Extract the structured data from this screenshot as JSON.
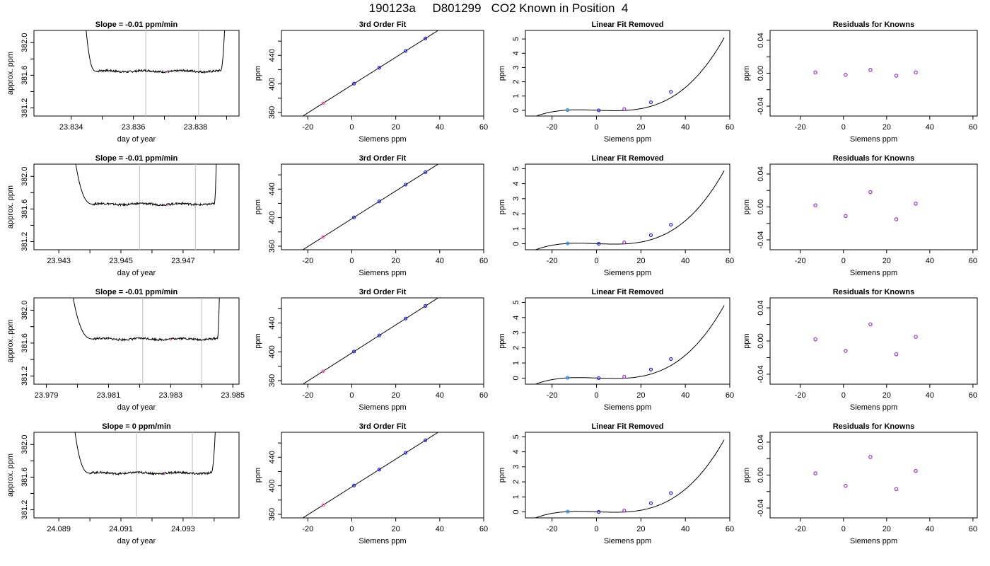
{
  "figure": {
    "title": "190123a     D801299   CO2 Known in Position  4"
  },
  "colors": {
    "line": "#000000",
    "divider": "#c8c8c8",
    "point_blue": "#1e1ee6",
    "point_violet": "#9a32cd",
    "point_cyan": "#1e90ff",
    "point_pink": "#ff69b4"
  },
  "chart_data": [
    {
      "row": 1,
      "time": {
        "type": "line",
        "title": "Slope =  -0.01  ppm/min",
        "xlabel": "day of year",
        "ylabel": "approx. ppm",
        "xlim": [
          23.8328,
          23.8394
        ],
        "ylim": [
          381.1,
          382.15
        ],
        "xticks": [
          23.834,
          23.835,
          23.836,
          23.837,
          23.838,
          23.839
        ],
        "xtick_labels": [
          "23.834",
          "",
          "23.836",
          "",
          "23.838",
          ""
        ],
        "yticks": [
          381.2,
          381.4,
          381.6,
          381.8,
          382.0
        ],
        "ytick_labels": [
          "381.2",
          "",
          "381.6",
          "",
          "382.0"
        ],
        "plateau_start": 23.8348,
        "plateau_end": 23.8388,
        "plateau_level": 381.65,
        "curve_start": 23.8344,
        "curve_end": 23.839,
        "vlines": [
          23.8364,
          23.8381
        ],
        "marker": {
          "x": 23.8371,
          "y": 381.64
        }
      },
      "fit": {
        "type": "scatter",
        "title": "3rd Order Fit",
        "xlabel": "Siemens ppm",
        "ylabel": "ppm",
        "xlim": [
          -32,
          60
        ],
        "ylim": [
          355,
          475
        ],
        "xticks": [
          -20,
          0,
          20,
          40,
          60
        ],
        "yticks": [
          360,
          380,
          400,
          420,
          440,
          460
        ],
        "ytick_labels": [
          "360",
          "",
          "400",
          "",
          "440",
          ""
        ],
        "line": {
          "slope": 1.95,
          "intercept": 398.4,
          "x_from": -30,
          "x_to": 57.5
        },
        "points": [
          {
            "x": -13,
            "y": 373
          },
          {
            "x": 1,
            "y": 400.4
          },
          {
            "x": 12.5,
            "y": 422.8
          },
          {
            "x": 24.5,
            "y": 446.3
          },
          {
            "x": 33.5,
            "y": 463.8
          }
        ]
      },
      "linear_removed": {
        "type": "scatter",
        "title": "Linear Fit Removed",
        "xlabel": "Siemens ppm",
        "ylabel": "ppm",
        "xlim": [
          -32,
          60
        ],
        "ylim": [
          -0.4,
          5.6
        ],
        "xticks": [
          -20,
          0,
          20,
          40,
          60
        ],
        "yticks": [
          0,
          1,
          2,
          3,
          4,
          5
        ],
        "curve": {
          "a": 2.84e-05,
          "b": 4e-06,
          "c": -0.0057,
          "d": 0.005,
          "x_from": -29,
          "x_to": 57.5
        },
        "points": [
          {
            "x": -13,
            "y": 0.02
          },
          {
            "x": 1,
            "y": 0
          },
          {
            "x": 12.5,
            "y": 0.09
          },
          {
            "x": 24.5,
            "y": 0.57
          },
          {
            "x": 33.5,
            "y": 1.3
          }
        ]
      },
      "residuals": {
        "type": "scatter",
        "title": "Residuals for Knowns",
        "xlabel": "Siemens ppm",
        "ylabel": "ppm",
        "xlim": [
          -34,
          62
        ],
        "ylim": [
          -0.052,
          0.052
        ],
        "xticks": [
          -20,
          0,
          20,
          40,
          60
        ],
        "yticks": [
          -0.04,
          -0.02,
          0,
          0.02,
          0.04
        ],
        "ytick_labels": [
          "-0.04",
          "",
          "0.00",
          "",
          "0.04"
        ],
        "points": [
          {
            "x": -13,
            "y": 0.001
          },
          {
            "x": 1,
            "y": -0.002
          },
          {
            "x": 12.5,
            "y": 0.004
          },
          {
            "x": 24.5,
            "y": -0.003
          },
          {
            "x": 33.5,
            "y": 0.001
          }
        ]
      }
    },
    {
      "row": 2,
      "time": {
        "type": "line",
        "title": "Slope =  -0.01  ppm/min",
        "xlabel": "day of year",
        "ylabel": "approx. ppm",
        "xlim": [
          23.9422,
          23.9488
        ],
        "ylim": [
          381.1,
          382.15
        ],
        "xticks": [
          23.943,
          23.944,
          23.945,
          23.946,
          23.947,
          23.948
        ],
        "xtick_labels": [
          "23.943",
          "",
          "23.945",
          "",
          "23.947",
          ""
        ],
        "yticks": [
          381.2,
          381.4,
          381.6,
          381.8,
          382.0
        ],
        "ytick_labels": [
          "381.2",
          "",
          "381.6",
          "",
          "382.0"
        ],
        "plateau_start": 23.9441,
        "plateau_end": 23.948,
        "plateau_level": 381.66,
        "curve_start": 23.9434,
        "curve_end": 23.9481,
        "vlines": [
          23.9456,
          23.9474
        ],
        "marker": {
          "x": 23.9465,
          "y": 381.65
        }
      },
      "fit": {
        "type": "scatter",
        "title": "3rd Order Fit",
        "xlabel": "Siemens ppm",
        "ylabel": "ppm",
        "xlim": [
          -32,
          60
        ],
        "ylim": [
          355,
          475
        ],
        "xticks": [
          -20,
          0,
          20,
          40,
          60
        ],
        "yticks": [
          360,
          380,
          400,
          420,
          440,
          460
        ],
        "ytick_labels": [
          "360",
          "",
          "400",
          "",
          "440",
          ""
        ],
        "line": {
          "slope": 1.95,
          "intercept": 398.4,
          "x_from": -30,
          "x_to": 57.5
        },
        "points": [
          {
            "x": -13,
            "y": 373
          },
          {
            "x": 1,
            "y": 400.4
          },
          {
            "x": 12.5,
            "y": 422.8
          },
          {
            "x": 24.5,
            "y": 446.3
          },
          {
            "x": 33.5,
            "y": 463.8
          }
        ]
      },
      "linear_removed": {
        "type": "scatter",
        "title": "Linear Fit Removed",
        "xlabel": "Siemens ppm",
        "ylabel": "ppm",
        "xlim": [
          -32,
          60
        ],
        "ylim": [
          -0.4,
          5.3
        ],
        "xticks": [
          -20,
          0,
          20,
          40,
          60
        ],
        "yticks": [
          0,
          1,
          2,
          3,
          4,
          5
        ],
        "curve": {
          "a": 2.72e-05,
          "b": 4e-06,
          "c": -0.0055,
          "d": 0.005,
          "x_from": -29,
          "x_to": 57.5
        },
        "points": [
          {
            "x": -13,
            "y": 0.02
          },
          {
            "x": 1,
            "y": 0
          },
          {
            "x": 12.5,
            "y": 0.09
          },
          {
            "x": 24.5,
            "y": 0.57
          },
          {
            "x": 33.5,
            "y": 1.27
          }
        ]
      },
      "residuals": {
        "type": "scatter",
        "title": "Residuals for Knowns",
        "xlabel": "Siemens ppm",
        "ylabel": "ppm",
        "xlim": [
          -34,
          62
        ],
        "ylim": [
          -0.052,
          0.052
        ],
        "xticks": [
          -20,
          0,
          20,
          40,
          60
        ],
        "yticks": [
          -0.04,
          -0.02,
          0,
          0.02,
          0.04
        ],
        "ytick_labels": [
          "-0.04",
          "",
          "0.00",
          "",
          "0.04"
        ],
        "points": [
          {
            "x": -13,
            "y": 0.002
          },
          {
            "x": 1,
            "y": -0.011
          },
          {
            "x": 12.5,
            "y": 0.018
          },
          {
            "x": 24.5,
            "y": -0.015
          },
          {
            "x": 33.5,
            "y": 0.004
          }
        ]
      }
    },
    {
      "row": 3,
      "time": {
        "type": "line",
        "title": "Slope =  -0.01  ppm/min",
        "xlabel": "day of year",
        "ylabel": "approx. ppm",
        "xlim": [
          23.9786,
          23.9852
        ],
        "ylim": [
          381.1,
          382.15
        ],
        "xticks": [
          23.979,
          23.98,
          23.981,
          23.982,
          23.983,
          23.984,
          23.985
        ],
        "xtick_labels": [
          "23.979",
          "",
          "23.981",
          "",
          "23.983",
          "",
          "23.985"
        ],
        "yticks": [
          381.2,
          381.4,
          381.6,
          381.8,
          382.0
        ],
        "ytick_labels": [
          "381.2",
          "",
          "381.6",
          "",
          "382.0"
        ],
        "plateau_start": 23.9805,
        "plateau_end": 23.9845,
        "plateau_level": 381.65,
        "curve_start": 23.9797,
        "curve_end": 23.9846,
        "vlines": [
          23.9821,
          23.984
        ],
        "marker": {
          "x": 23.983,
          "y": 381.64
        }
      },
      "fit": {
        "type": "scatter",
        "title": "3rd Order Fit",
        "xlabel": "Siemens ppm",
        "ylabel": "ppm",
        "xlim": [
          -32,
          60
        ],
        "ylim": [
          355,
          475
        ],
        "xticks": [
          -20,
          0,
          20,
          40,
          60
        ],
        "yticks": [
          360,
          380,
          400,
          420,
          440,
          460
        ],
        "ytick_labels": [
          "360",
          "",
          "400",
          "",
          "440",
          ""
        ],
        "line": {
          "slope": 1.95,
          "intercept": 398.4,
          "x_from": -30,
          "x_to": 57.5
        },
        "points": [
          {
            "x": -13,
            "y": 373
          },
          {
            "x": 1,
            "y": 400.4
          },
          {
            "x": 12.5,
            "y": 422.8
          },
          {
            "x": 24.5,
            "y": 446.3
          },
          {
            "x": 33.5,
            "y": 463.8
          }
        ]
      },
      "linear_removed": {
        "type": "scatter",
        "title": "Linear Fit Removed",
        "xlabel": "Siemens ppm",
        "ylabel": "ppm",
        "xlim": [
          -32,
          60
        ],
        "ylim": [
          -0.4,
          5.3
        ],
        "xticks": [
          -20,
          0,
          20,
          40,
          60
        ],
        "yticks": [
          0,
          1,
          2,
          3,
          4,
          5
        ],
        "curve": {
          "a": 2.68e-05,
          "b": 4e-06,
          "c": -0.0054,
          "d": 0.005,
          "x_from": -29,
          "x_to": 57.5
        },
        "points": [
          {
            "x": -13,
            "y": 0.02
          },
          {
            "x": 1,
            "y": 0
          },
          {
            "x": 12.5,
            "y": 0.09
          },
          {
            "x": 24.5,
            "y": 0.57
          },
          {
            "x": 33.5,
            "y": 1.26
          }
        ]
      },
      "residuals": {
        "type": "scatter",
        "title": "Residuals for Knowns",
        "xlabel": "Siemens ppm",
        "ylabel": "ppm",
        "xlim": [
          -34,
          62
        ],
        "ylim": [
          -0.052,
          0.052
        ],
        "xticks": [
          -20,
          0,
          20,
          40,
          60
        ],
        "yticks": [
          -0.04,
          -0.02,
          0,
          0.02,
          0.04
        ],
        "ytick_labels": [
          "-0.04",
          "",
          "0.00",
          "",
          "0.04"
        ],
        "points": [
          {
            "x": -13,
            "y": 0.002
          },
          {
            "x": 1,
            "y": -0.012
          },
          {
            "x": 12.5,
            "y": 0.02
          },
          {
            "x": 24.5,
            "y": -0.016
          },
          {
            "x": 33.5,
            "y": 0.005
          }
        ]
      }
    },
    {
      "row": 4,
      "time": {
        "type": "line",
        "title": "Slope =  0  ppm/min",
        "xlabel": "day of year",
        "ylabel": "approx. ppm",
        "xlim": [
          24.0882,
          24.0948
        ],
        "ylim": [
          381.1,
          382.15
        ],
        "xticks": [
          24.089,
          24.09,
          24.091,
          24.092,
          24.093,
          24.094
        ],
        "xtick_labels": [
          "24.089",
          "",
          "24.091",
          "",
          "24.093",
          ""
        ],
        "yticks": [
          381.2,
          381.4,
          381.6,
          381.8,
          382.0
        ],
        "ytick_labels": [
          "381.2",
          "",
          "381.6",
          "",
          "382.0"
        ],
        "plateau_start": 24.09,
        "plateau_end": 24.0939,
        "plateau_level": 381.65,
        "curve_start": 24.0894,
        "curve_end": 24.0941,
        "vlines": [
          24.0915,
          24.0933
        ],
        "marker": {
          "x": 24.0924,
          "y": 381.64
        }
      },
      "fit": {
        "type": "scatter",
        "title": "3rd Order Fit",
        "xlabel": "Siemens ppm",
        "ylabel": "ppm",
        "xlim": [
          -32,
          60
        ],
        "ylim": [
          355,
          475
        ],
        "xticks": [
          -20,
          0,
          20,
          40,
          60
        ],
        "yticks": [
          360,
          380,
          400,
          420,
          440,
          460
        ],
        "ytick_labels": [
          "360",
          "",
          "400",
          "",
          "440",
          ""
        ],
        "line": {
          "slope": 1.95,
          "intercept": 398.4,
          "x_from": -30,
          "x_to": 57.5
        },
        "points": [
          {
            "x": -13,
            "y": 373
          },
          {
            "x": 1,
            "y": 400.4
          },
          {
            "x": 12.5,
            "y": 422.8
          },
          {
            "x": 24.5,
            "y": 446.3
          },
          {
            "x": 33.5,
            "y": 463.8
          }
        ]
      },
      "linear_removed": {
        "type": "scatter",
        "title": "Linear Fit Removed",
        "xlabel": "Siemens ppm",
        "ylabel": "ppm",
        "xlim": [
          -32,
          60
        ],
        "ylim": [
          -0.4,
          5.3
        ],
        "xticks": [
          -20,
          0,
          20,
          40,
          60
        ],
        "yticks": [
          0,
          1,
          2,
          3,
          4,
          5
        ],
        "curve": {
          "a": 2.68e-05,
          "b": 4e-06,
          "c": -0.0054,
          "d": 0.005,
          "x_from": -29,
          "x_to": 57.5
        },
        "points": [
          {
            "x": -13,
            "y": 0.02
          },
          {
            "x": 1,
            "y": 0
          },
          {
            "x": 12.5,
            "y": 0.09
          },
          {
            "x": 24.5,
            "y": 0.58
          },
          {
            "x": 33.5,
            "y": 1.25
          }
        ]
      },
      "residuals": {
        "type": "scatter",
        "title": "Residuals for Knowns",
        "xlabel": "Siemens ppm",
        "ylabel": "ppm",
        "xlim": [
          -34,
          62
        ],
        "ylim": [
          -0.052,
          0.052
        ],
        "xticks": [
          -20,
          0,
          20,
          40,
          60
        ],
        "yticks": [
          -0.04,
          -0.02,
          0,
          0.02,
          0.04
        ],
        "ytick_labels": [
          "-0.04",
          "",
          "0.00",
          "",
          "0.04"
        ],
        "points": [
          {
            "x": -13,
            "y": 0.002
          },
          {
            "x": 1,
            "y": -0.013
          },
          {
            "x": 12.5,
            "y": 0.022
          },
          {
            "x": 24.5,
            "y": -0.017
          },
          {
            "x": 33.5,
            "y": 0.005
          }
        ]
      }
    }
  ]
}
